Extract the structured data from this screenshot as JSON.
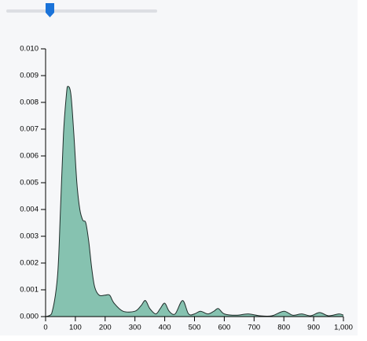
{
  "chart_data": {
    "type": "area",
    "x": [
      0,
      20,
      40,
      50,
      60,
      70,
      75,
      85,
      95,
      105,
      115,
      125,
      135,
      145,
      155,
      165,
      180,
      200,
      215,
      230,
      260,
      300,
      320,
      335,
      350,
      370,
      385,
      400,
      415,
      435,
      460,
      480,
      500,
      520,
      545,
      565,
      580,
      600,
      640,
      680,
      720,
      760,
      800,
      830,
      860,
      890,
      920,
      950,
      985,
      1000
    ],
    "values": [
      0,
      0.0001,
      0.0015,
      0.004,
      0.0068,
      0.0083,
      0.0086,
      0.0083,
      0.0068,
      0.005,
      0.004,
      0.0036,
      0.0035,
      0.0028,
      0.0018,
      0.0011,
      0.0008,
      0.0008,
      0.0008,
      0.0005,
      0.0002,
      0.0002,
      0.0004,
      0.0006,
      0.0003,
      0.0001,
      0.0003,
      0.0005,
      0.0002,
      0.0001,
      0.0006,
      0.0001,
      0.0001,
      0.0002,
      0.0001,
      0.0002,
      0.0003,
      0.0001,
      5e-05,
      0.0001,
      3e-05,
      3e-05,
      0.0002,
      5e-05,
      0.0001,
      3e-05,
      0.00015,
      3e-05,
      0.0001,
      5e-05
    ],
    "color": "#86c2b0",
    "xlim": [
      0,
      1000
    ],
    "ylim": [
      0,
      0.01
    ],
    "xticks": [
      0,
      100,
      200,
      300,
      400,
      500,
      600,
      700,
      800,
      900,
      {
        "value": 1000,
        "label": "1,000"
      }
    ],
    "yticks": [
      {
        "value": 0,
        "label": "0.000"
      },
      {
        "value": 0.001,
        "label": "0.001"
      },
      {
        "value": 0.002,
        "label": "0.002"
      },
      {
        "value": 0.003,
        "label": "0.003"
      },
      {
        "value": 0.004,
        "label": "0.004"
      },
      {
        "value": 0.005,
        "label": "0.005"
      },
      {
        "value": 0.006,
        "label": "0.006"
      },
      {
        "value": 0.007,
        "label": "0.007"
      },
      {
        "value": 0.008,
        "label": "0.008"
      },
      {
        "value": 0.009,
        "label": "0.009"
      },
      {
        "value": 0.01,
        "label": "0.010"
      }
    ]
  }
}
